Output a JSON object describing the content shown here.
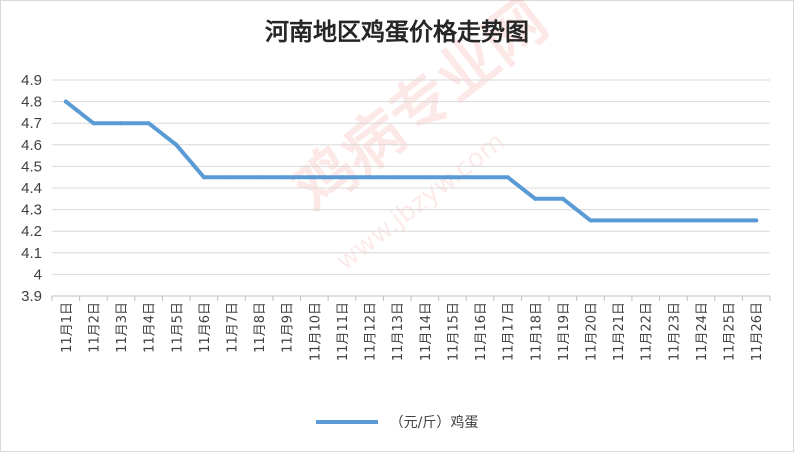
{
  "chart_data": {
    "type": "line",
    "title": "河南地区鸡蛋价格走势图",
    "xlabel": "",
    "ylabel": "",
    "categories": [
      "11月1日",
      "11月2日",
      "11月3日",
      "11月4日",
      "11月5日",
      "11月6日",
      "11月7日",
      "11月8日",
      "11月9日",
      "11月10日",
      "11月11日",
      "11月12日",
      "11月13日",
      "11月14日",
      "11月15日",
      "11月16日",
      "11月17日",
      "11月18日",
      "11月19日",
      "11月20日",
      "11月21日",
      "11月22日",
      "11月23日",
      "11月24日",
      "11月25日",
      "11月26日"
    ],
    "series": [
      {
        "name": "（元/斤）鸡蛋",
        "color": "#5b9bd5",
        "values": [
          4.8,
          4.7,
          4.7,
          4.7,
          4.6,
          4.45,
          4.45,
          4.45,
          4.45,
          4.45,
          4.45,
          4.45,
          4.45,
          4.45,
          4.45,
          4.45,
          4.45,
          4.35,
          4.35,
          4.25,
          4.25,
          4.25,
          4.25,
          4.25,
          4.25,
          4.25
        ]
      }
    ],
    "ylim": [
      3.9,
      4.9
    ],
    "yticks": [
      "3.9",
      "4",
      "4.1",
      "4.2",
      "4.3",
      "4.4",
      "4.5",
      "4.6",
      "4.7",
      "4.8",
      "4.9"
    ],
    "grid": true,
    "legend_position": "bottom"
  },
  "watermark": {
    "logo_text": "鸡病专业网",
    "url_text": "www.jbzyw.com"
  }
}
